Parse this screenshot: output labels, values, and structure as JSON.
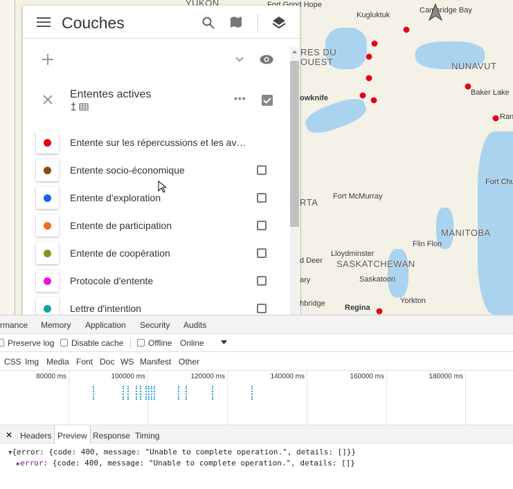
{
  "map": {
    "labels": [
      "YUKON",
      "Fort Good Hope",
      "Kugluktuk",
      "Cambridge Bay",
      "RES DU",
      "OUEST",
      "NUNAVUT",
      "Baker Lake",
      "Ran",
      "owknife",
      "Fort Chu",
      "RTA",
      "Fort McMurray",
      "MANITOBA",
      "Flin Flon",
      "Lloydminster",
      "d Deer",
      "SASKATCHEWAN",
      "Saskatoon",
      "ary",
      "Yorkton",
      "hbridge",
      "Regina"
    ]
  },
  "layers_panel": {
    "title": "Couches",
    "group": {
      "name": "Ententes actives",
      "items": [
        "Entente sur les répercussions et les av…",
        "Entente socio-économique",
        "Entente d'exploration",
        "Entente de participation",
        "Entente de coopération",
        "Protocole d'entente",
        "Lettre d'intention"
      ]
    }
  },
  "devtools": {
    "tabs": [
      "rmance",
      "Memory",
      "Application",
      "Security",
      "Audits"
    ],
    "toolbar": {
      "preserve_log": "Preserve log",
      "disable_cache": "Disable cache",
      "offline": "Offline",
      "throttle": "Online"
    },
    "filters": [
      "CSS",
      "Img",
      "Media",
      "Font",
      "Doc",
      "WS",
      "Manifest",
      "Other"
    ],
    "timeline_ticks": [
      "80000 ms",
      "100000 ms",
      "120000 ms",
      "140000 ms",
      "160000 ms",
      "180000 ms"
    ],
    "detail_tabs": [
      "Headers",
      "Preview",
      "Response",
      "Timing"
    ],
    "preview": {
      "line1": "{error: {code: 400, message: \"Unable to complete operation.\", details: []}}",
      "line2_key": "error",
      "line2_rest": ": {code: 400, message: \"Unable to complete operation.\", details: []}"
    }
  }
}
